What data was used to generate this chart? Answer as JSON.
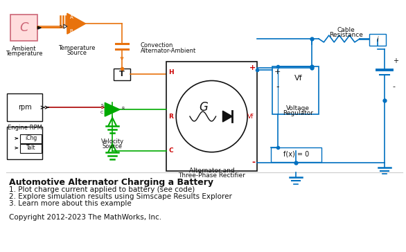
{
  "title": "Automotive Alternator Charging a Battery",
  "bullet1": "1. Plot charge current applied to battery (see code)",
  "bullet2": "2. Explore simulation results using Simscape Results Explorer",
  "bullet3": "3. Learn more about this example",
  "copyright": "Copyright 2012-2023 The MathWorks, Inc.",
  "bg_color": "#ffffff",
  "orange": "#E8720C",
  "blue": "#0070C0",
  "green": "#00AA00",
  "red": "#CC0000",
  "dark": "#111111",
  "pink_ec": "#CC6677",
  "pink_fc": "#FFDDDD"
}
